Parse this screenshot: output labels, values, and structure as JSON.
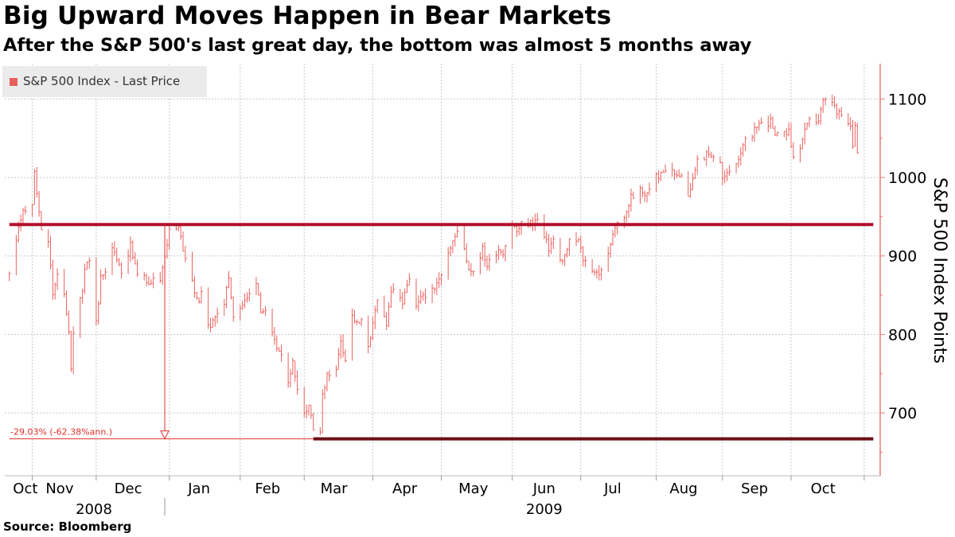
{
  "title": "Big Upward Moves Happen in Bear Markets",
  "subtitle": "After the S&P 500's last great day, the bottom was almost 5 months away",
  "source": "Source: Bloomberg",
  "colors": {
    "series": "#e8605c",
    "level": "#b3102c",
    "low_line": "#6b1018",
    "annotation": "#e0302a",
    "grid": "#c8c8c8",
    "axis": "#ea7a74"
  },
  "chart_data": {
    "type": "line",
    "series": [
      {
        "name": "S&P 500 Index - Last Price",
        "start": "2008-10-24",
        "end": "2009-10-30",
        "points": [
          [
            "2008-10-24",
            876
          ],
          [
            "2008-10-28",
            940
          ],
          [
            "2008-10-30",
            954
          ],
          [
            "2008-11-03",
            968
          ],
          [
            "2008-11-04",
            1005
          ],
          [
            "2008-11-07",
            930
          ],
          [
            "2008-11-10",
            919
          ],
          [
            "2008-11-12",
            852
          ],
          [
            "2008-11-14",
            873
          ],
          [
            "2008-11-17",
            850
          ],
          [
            "2008-11-19",
            806
          ],
          [
            "2008-11-20",
            752
          ],
          [
            "2008-11-21",
            800
          ],
          [
            "2008-11-24",
            851
          ],
          [
            "2008-11-25",
            857
          ],
          [
            "2008-11-26",
            887
          ],
          [
            "2008-11-28",
            896
          ],
          [
            "2008-12-01",
            816
          ],
          [
            "2008-12-03",
            870
          ],
          [
            "2008-12-05",
            876
          ],
          [
            "2008-12-08",
            909
          ],
          [
            "2008-12-10",
            899
          ],
          [
            "2008-12-12",
            879
          ],
          [
            "2008-12-16",
            913
          ],
          [
            "2008-12-18",
            885
          ],
          [
            "2008-12-22",
            871
          ],
          [
            "2008-12-24",
            868
          ],
          [
            "2008-12-29",
            870
          ],
          [
            "2008-12-31",
            903
          ],
          [
            "2009-01-02",
            931
          ],
          [
            "2009-01-06",
            935
          ],
          [
            "2009-01-08",
            910
          ],
          [
            "2009-01-12",
            870
          ],
          [
            "2009-01-14",
            842
          ],
          [
            "2009-01-16",
            850
          ],
          [
            "2009-01-20",
            805
          ],
          [
            "2009-01-22",
            827
          ],
          [
            "2009-01-26",
            836
          ],
          [
            "2009-01-28",
            874
          ],
          [
            "2009-01-30",
            826
          ],
          [
            "2009-02-03",
            838
          ],
          [
            "2009-02-05",
            845
          ],
          [
            "2009-02-09",
            869
          ],
          [
            "2009-02-11",
            833
          ],
          [
            "2009-02-13",
            827
          ],
          [
            "2009-02-17",
            789
          ],
          [
            "2009-02-19",
            778
          ],
          [
            "2009-02-23",
            743
          ],
          [
            "2009-02-25",
            764
          ],
          [
            "2009-02-27",
            735
          ],
          [
            "2009-03-02",
            700
          ],
          [
            "2009-03-04",
            712
          ],
          [
            "2009-03-06",
            683
          ],
          [
            "2009-03-09",
            677
          ],
          [
            "2009-03-10",
            720
          ],
          [
            "2009-03-12",
            751
          ],
          [
            "2009-03-16",
            753
          ],
          [
            "2009-03-18",
            794
          ],
          [
            "2009-03-20",
            768
          ],
          [
            "2009-03-23",
            823
          ],
          [
            "2009-03-25",
            813
          ],
          [
            "2009-03-27",
            815
          ],
          [
            "2009-03-30",
            787
          ],
          [
            "2009-04-01",
            811
          ],
          [
            "2009-04-03",
            842
          ],
          [
            "2009-04-07",
            815
          ],
          [
            "2009-04-09",
            856
          ],
          [
            "2009-04-14",
            841
          ],
          [
            "2009-04-17",
            869
          ],
          [
            "2009-04-20",
            832
          ],
          [
            "2009-04-23",
            851
          ],
          [
            "2009-04-28",
            855
          ],
          [
            "2009-04-30",
            872
          ],
          [
            "2009-05-04",
            907
          ],
          [
            "2009-05-06",
            919
          ],
          [
            "2009-05-08",
            929
          ],
          [
            "2009-05-11",
            909
          ],
          [
            "2009-05-13",
            884
          ],
          [
            "2009-05-15",
            882
          ],
          [
            "2009-05-19",
            908
          ],
          [
            "2009-05-21",
            888
          ],
          [
            "2009-05-26",
            910
          ],
          [
            "2009-05-28",
            906
          ],
          [
            "2009-06-01",
            942
          ],
          [
            "2009-06-03",
            931
          ],
          [
            "2009-06-05",
            940
          ],
          [
            "2009-06-09",
            942
          ],
          [
            "2009-06-12",
            946
          ],
          [
            "2009-06-15",
            923
          ],
          [
            "2009-06-17",
            910
          ],
          [
            "2009-06-19",
            921
          ],
          [
            "2009-06-22",
            893
          ],
          [
            "2009-06-24",
            900
          ],
          [
            "2009-06-26",
            918
          ],
          [
            "2009-06-30",
            919
          ],
          [
            "2009-07-02",
            896
          ],
          [
            "2009-07-07",
            881
          ],
          [
            "2009-07-08",
            879
          ],
          [
            "2009-07-10",
            879
          ],
          [
            "2009-07-13",
            901
          ],
          [
            "2009-07-15",
            932
          ],
          [
            "2009-07-17",
            941
          ],
          [
            "2009-07-21",
            954
          ],
          [
            "2009-07-23",
            976
          ],
          [
            "2009-07-27",
            982
          ],
          [
            "2009-07-29",
            975
          ],
          [
            "2009-07-31",
            987
          ],
          [
            "2009-08-03",
            1002
          ],
          [
            "2009-08-05",
            1002
          ],
          [
            "2009-08-07",
            1010
          ],
          [
            "2009-08-10",
            1007
          ],
          [
            "2009-08-12",
            1005
          ],
          [
            "2009-08-14",
            1004
          ],
          [
            "2009-08-17",
            979
          ],
          [
            "2009-08-19",
            996
          ],
          [
            "2009-08-21",
            1026
          ],
          [
            "2009-08-25",
            1028
          ],
          [
            "2009-08-27",
            1030
          ],
          [
            "2009-08-31",
            1021
          ],
          [
            "2009-09-01",
            998
          ],
          [
            "2009-09-03",
            1003
          ],
          [
            "2009-09-08",
            1025
          ],
          [
            "2009-09-10",
            1044
          ],
          [
            "2009-09-14",
            1049
          ],
          [
            "2009-09-16",
            1068
          ],
          [
            "2009-09-18",
            1068
          ],
          [
            "2009-09-22",
            1071
          ],
          [
            "2009-09-24",
            1050
          ],
          [
            "2009-09-28",
            1062
          ],
          [
            "2009-09-30",
            1057
          ],
          [
            "2009-10-02",
            1025
          ],
          [
            "2009-10-05",
            1040
          ],
          [
            "2009-10-07",
            1057
          ],
          [
            "2009-10-09",
            1071
          ],
          [
            "2009-10-13",
            1073
          ],
          [
            "2009-10-15",
            1096
          ],
          [
            "2009-10-19",
            1097
          ],
          [
            "2009-10-21",
            1081
          ],
          [
            "2009-10-23",
            1079
          ],
          [
            "2009-10-27",
            1063
          ],
          [
            "2009-10-28",
            1042
          ],
          [
            "2009-10-29",
            1066
          ],
          [
            "2009-10-30",
            1036
          ]
        ]
      }
    ],
    "horizontal_lines": [
      {
        "name": "last great day level",
        "y": 940,
        "x_start": "2008-10-24",
        "x_end": "2009-11-06"
      },
      {
        "name": "market bottom level",
        "y": 667,
        "x_start": "2009-03-06",
        "x_end": "2009-11-06"
      }
    ],
    "annotation": {
      "text": "-29.03% (-62.38%ann.)",
      "from": {
        "x": "2008-12-31",
        "y": 940
      },
      "to": {
        "x": "2008-12-31",
        "y": 667
      },
      "baseline_x_start": "2008-10-24",
      "baseline_x_end": "2009-03-06"
    },
    "x_range": [
      "2008-10-22",
      "2009-11-09"
    ],
    "ylim": [
      620,
      1145
    ],
    "yticks": [
      700,
      800,
      900,
      1000,
      1100
    ],
    "month_ticks": [
      {
        "label": "Oct",
        "date": "2008-10-31"
      },
      {
        "label": "Nov",
        "date": "2008-11-15"
      },
      {
        "label": "Dec",
        "date": "2008-12-15"
      },
      {
        "label": "Jan",
        "date": "2009-01-15"
      },
      {
        "label": "Feb",
        "date": "2009-02-14"
      },
      {
        "label": "Mar",
        "date": "2009-03-15"
      },
      {
        "label": "Apr",
        "date": "2009-04-15"
      },
      {
        "label": "May",
        "date": "2009-05-15"
      },
      {
        "label": "Jun",
        "date": "2009-06-15"
      },
      {
        "label": "Jul",
        "date": "2009-07-15"
      },
      {
        "label": "Aug",
        "date": "2009-08-15"
      },
      {
        "label": "Sep",
        "date": "2009-09-15"
      },
      {
        "label": "Oct",
        "date": "2009-10-15"
      }
    ],
    "year_labels": [
      {
        "label": "2008",
        "date": "2008-11-30"
      },
      {
        "label": "2009",
        "date": "2009-06-15"
      }
    ],
    "year_divider": "2008-12-31",
    "ylabel": "S&P 500 Index Points",
    "xlabel": "",
    "grid": true,
    "legend": {
      "position": "top-left",
      "label": "S&P 500 Index - Last Price"
    }
  }
}
